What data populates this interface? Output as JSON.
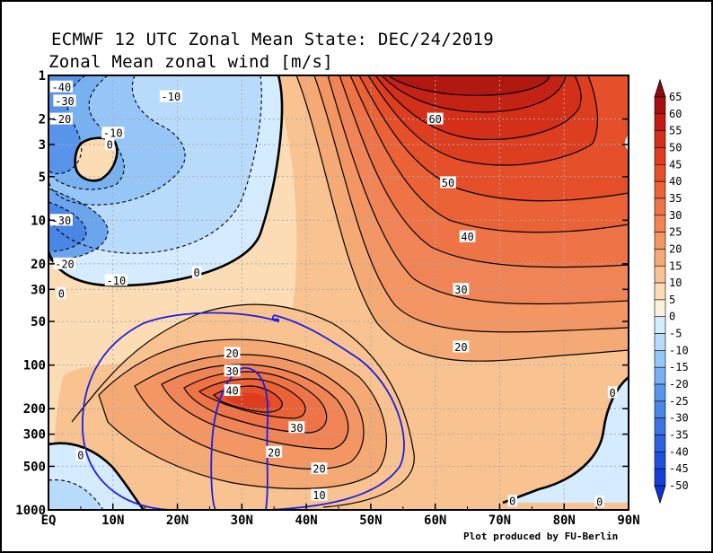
{
  "chart_data": {
    "type": "heatmap",
    "title": "ECMWF 12 UTC Zonal Mean State: DEC/24/2019",
    "subtitle": "Zonal Mean zonal wind [m/s]",
    "credit": "Plot produced by FU-Berlin",
    "x_tick_labels": [
      "EQ",
      "10N",
      "20N",
      "30N",
      "40N",
      "50N",
      "60N",
      "70N",
      "80N",
      "90N"
    ],
    "x_ticks": [
      0,
      10,
      20,
      30,
      40,
      50,
      60,
      70,
      80,
      90
    ],
    "xlim": [
      0,
      90
    ],
    "y_tick_labels": [
      "1",
      "2",
      "3",
      "5",
      "10",
      "20",
      "30",
      "50",
      "100",
      "200",
      "300",
      "500",
      "1000"
    ],
    "y_ticks": [
      1,
      2,
      3,
      5,
      10,
      20,
      30,
      50,
      100,
      200,
      300,
      500,
      1000
    ],
    "ylim": [
      1,
      1000
    ],
    "y_scale": "log",
    "y_inverted": true,
    "grid": true,
    "colorbar": {
      "levels": [
        65,
        60,
        55,
        50,
        45,
        40,
        35,
        30,
        25,
        20,
        15,
        10,
        5,
        0,
        -5,
        -10,
        -15,
        -20,
        -25,
        -30,
        -35,
        -40,
        -45,
        -50
      ],
      "labels": [
        "65",
        "60",
        "55",
        "50",
        "45",
        "40",
        "35",
        "30",
        "25",
        "20",
        "15",
        "10",
        "5",
        "0",
        "-5",
        "-10",
        "-15",
        "-20",
        "-25",
        "-30",
        "-35",
        "-40",
        "-45",
        "-50"
      ],
      "placement": "right"
    },
    "contour_labels": [
      {
        "text": "-40",
        "lat": 2,
        "p": 1.2
      },
      {
        "text": "-30",
        "lat": 2.5,
        "p": 1.5
      },
      {
        "text": "-20",
        "lat": 2,
        "p": 2
      },
      {
        "text": "-10",
        "lat": 19,
        "p": 1.4
      },
      {
        "text": "-10",
        "lat": 10,
        "p": 2.5
      },
      {
        "text": "0",
        "lat": 9.5,
        "p": 3
      },
      {
        "text": "-30",
        "lat": 2,
        "p": 10
      },
      {
        "text": "-20",
        "lat": 2.5,
        "p": 20
      },
      {
        "text": "-10",
        "lat": 10.5,
        "p": 26
      },
      {
        "text": "0",
        "lat": 2,
        "p": 32
      },
      {
        "text": "0",
        "lat": 23,
        "p": 23
      },
      {
        "text": "60",
        "lat": 60,
        "p": 2
      },
      {
        "text": "50",
        "lat": 62,
        "p": 5.5
      },
      {
        "text": "40",
        "lat": 65,
        "p": 13
      },
      {
        "text": "30",
        "lat": 64,
        "p": 30
      },
      {
        "text": "20",
        "lat": 64,
        "p": 75
      },
      {
        "text": "20",
        "lat": 28.5,
        "p": 83
      },
      {
        "text": "30",
        "lat": 28.5,
        "p": 110
      },
      {
        "text": "40",
        "lat": 28.5,
        "p": 150
      },
      {
        "text": "30",
        "lat": 38.5,
        "p": 270
      },
      {
        "text": "20",
        "lat": 35,
        "p": 400
      },
      {
        "text": "20",
        "lat": 42,
        "p": 520
      },
      {
        "text": "10",
        "lat": 42,
        "p": 790
      },
      {
        "text": "0",
        "lat": 5,
        "p": 420
      },
      {
        "text": "0",
        "lat": 72,
        "p": 870
      },
      {
        "text": "0",
        "lat": 85.5,
        "p": 880
      },
      {
        "text": "0",
        "lat": 87.5,
        "p": 155
      }
    ]
  }
}
